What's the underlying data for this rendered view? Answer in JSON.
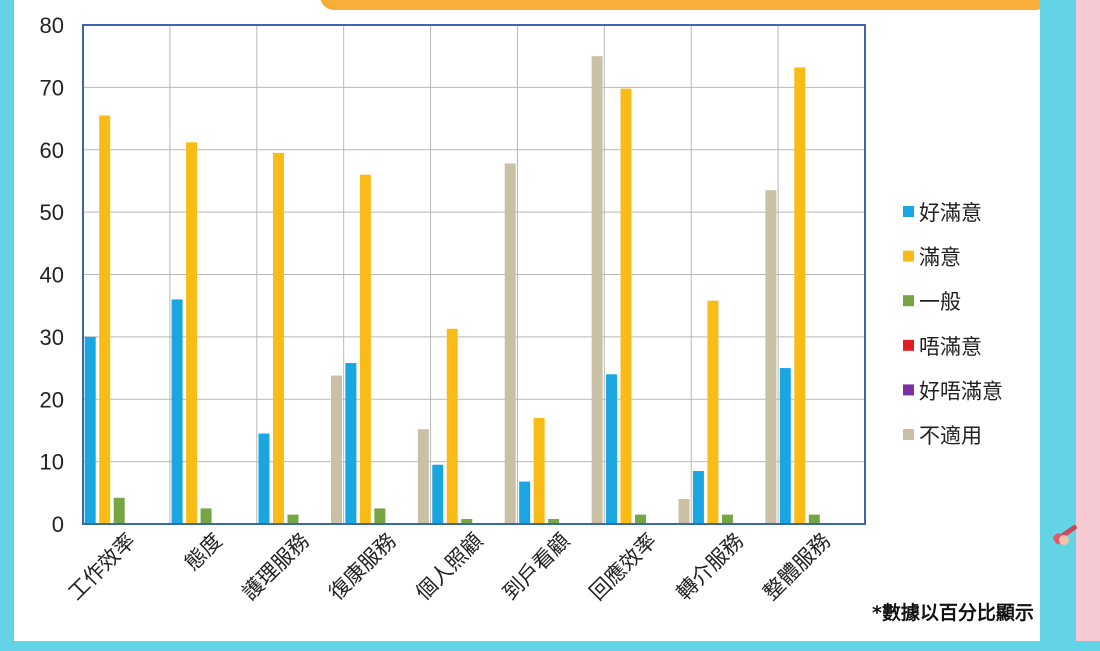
{
  "chart_data": {
    "type": "bar",
    "categories": [
      "工作效率",
      "態度",
      "護理服務",
      "復康服務",
      "個人照顧",
      "到戶看顧",
      "回應效率",
      "轉介服務",
      "整體服務"
    ],
    "series": [
      {
        "name": "好滿意",
        "color": "#1aa7e1",
        "values": [
          30,
          36,
          14.5,
          25.8,
          9.5,
          6.8,
          24,
          8.5,
          25
        ]
      },
      {
        "name": "滿意",
        "color": "#f9bc16",
        "values": [
          65.5,
          61.2,
          59.5,
          56,
          31.3,
          17,
          69.8,
          35.8,
          73.2
        ]
      },
      {
        "name": "一般",
        "color": "#77a544",
        "values": [
          4.2,
          2.5,
          1.5,
          2.5,
          0.8,
          0.8,
          1.5,
          1.5,
          1.5
        ]
      },
      {
        "name": "唔滿意",
        "color": "#e31b23",
        "values": [
          0,
          0,
          0,
          0,
          0,
          0,
          0,
          0,
          0
        ]
      },
      {
        "name": "好唔滿意",
        "color": "#7b2fa0",
        "values": [
          0,
          0,
          0,
          0,
          0,
          0,
          0,
          0,
          0
        ]
      },
      {
        "name": "不適用",
        "color": "#c9c0a5",
        "values": [
          0,
          0,
          23.8,
          15.2,
          57.8,
          75,
          4,
          53.5,
          0
        ]
      }
    ],
    "ylim": [
      0,
      80
    ],
    "yticks": [
      0,
      10,
      20,
      30,
      40,
      50,
      60,
      70,
      80
    ],
    "grid": true,
    "legend": "right",
    "plot_border_color": "#3c67b0"
  },
  "footnote": "*數據以百分比顯示"
}
